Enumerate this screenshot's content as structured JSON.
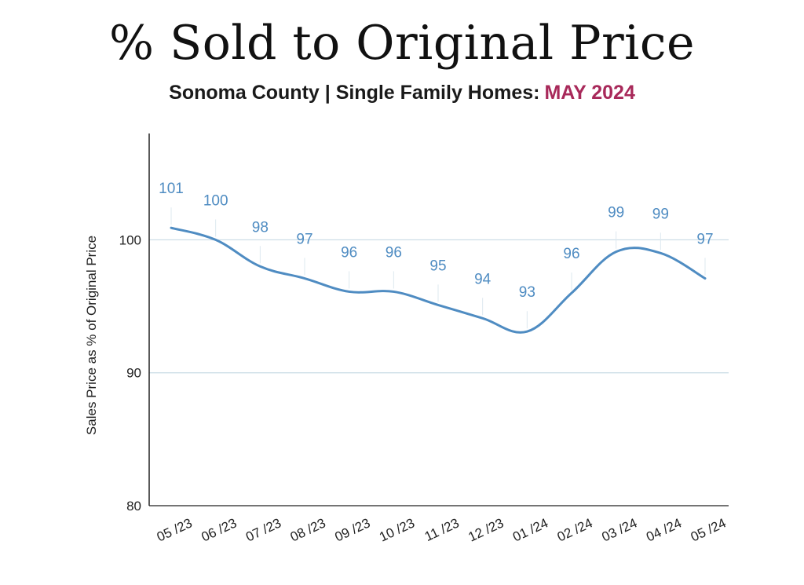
{
  "header": {
    "title": "% Sold to Original Price",
    "subtitle": "Sonoma County | Single Family Homes:",
    "subtitle_accent": "MAY 2024"
  },
  "colors": {
    "line": "#4f8cc2",
    "label": "#4f8cc2",
    "accent": "#a8295a",
    "grid": "#c9dbe5",
    "axis": "#222222"
  },
  "chart_data": {
    "type": "line",
    "categories": [
      "05 /23",
      "06 /23",
      "07 /23",
      "08 /23",
      "09 /23",
      "10 /23",
      "11 /23",
      "12 /23",
      "01 /24",
      "02 /24",
      "03 /24",
      "04 /24",
      "05 /24"
    ],
    "series": [
      {
        "values": [
          100.9,
          100.0,
          98.0,
          97.1,
          96.1,
          96.1,
          95.1,
          94.1,
          93.1,
          96.0,
          99.1,
          99.0,
          97.1
        ],
        "labels": [
          "101",
          "100",
          "98",
          "97",
          "96",
          "96",
          "95",
          "94",
          "93",
          "96",
          "99",
          "99",
          "97"
        ]
      }
    ],
    "ylabel": "Sales Price as % of Original Price",
    "xlabel": "",
    "ylim": [
      80,
      108
    ],
    "yticks": [
      "80",
      "90",
      "100"
    ],
    "grid": true
  }
}
